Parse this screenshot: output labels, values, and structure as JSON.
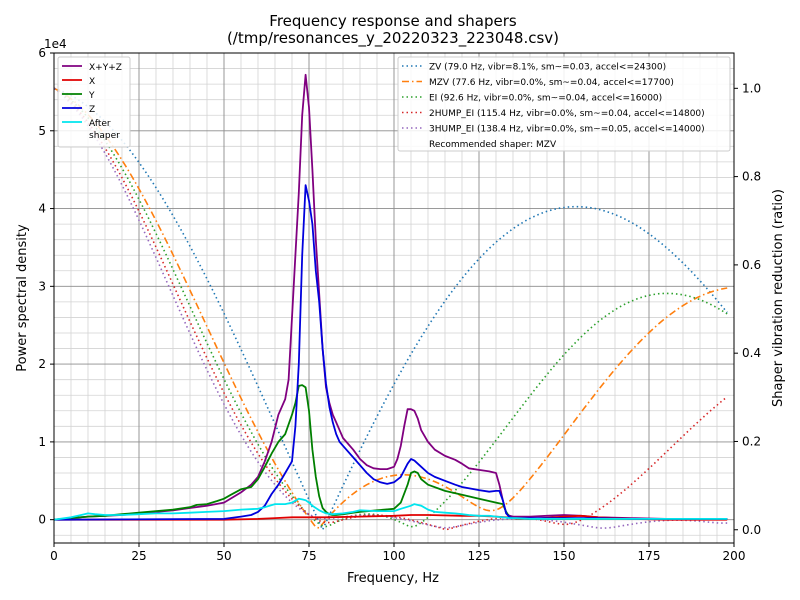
{
  "chart_data": {
    "type": "line",
    "title": "Frequency response and shapers",
    "subtitle": "(/tmp/resonances_y_20220323_223048.csv)",
    "xlabel": "Frequency, Hz",
    "ylabel": "Power spectral density",
    "y2label": "Shaper vibration reduction (ratio)",
    "y_multiplier_label": "1e4",
    "xlim": [
      0,
      200
    ],
    "ylim": [
      -0.3,
      6.0
    ],
    "y2lim": [
      -0.03,
      1.08
    ],
    "xticks": [
      0,
      25,
      50,
      75,
      100,
      125,
      150,
      175,
      200
    ],
    "yticks": [
      0,
      1,
      2,
      3,
      4,
      5,
      6
    ],
    "y2ticks": [
      "0.0",
      "0.2",
      "0.4",
      "0.6",
      "0.8",
      "1.0"
    ],
    "grid": true,
    "psd_legend_position": "upper-left",
    "shaper_legend_position": "upper-right",
    "recommendation": "Recommended shaper: MZV",
    "psd_series": [
      {
        "name": "X+Y+Z",
        "color": "#800080",
        "style": "solid",
        "x": [
          0,
          5,
          10,
          15,
          20,
          25,
          30,
          35,
          40,
          45,
          50,
          55,
          58,
          60,
          62,
          64,
          66,
          68,
          69,
          70,
          71,
          72,
          73,
          74,
          75,
          76,
          77,
          78,
          79,
          80,
          81,
          82,
          83,
          84,
          85,
          86,
          88,
          90,
          92,
          94,
          96,
          98,
          100,
          101,
          102,
          103,
          104,
          105,
          106,
          107,
          108,
          110,
          112,
          115,
          118,
          120,
          122,
          125,
          128,
          130,
          131,
          132,
          133,
          134,
          135,
          140,
          145,
          150,
          155,
          160,
          170,
          180,
          190,
          198
        ],
        "y": [
          0,
          0.02,
          0.04,
          0.05,
          0.06,
          0.08,
          0.1,
          0.12,
          0.15,
          0.18,
          0.22,
          0.35,
          0.45,
          0.55,
          0.75,
          1.0,
          1.35,
          1.55,
          1.8,
          2.6,
          3.4,
          4.2,
          5.2,
          5.72,
          5.3,
          4.5,
          3.6,
          2.9,
          2.2,
          1.7,
          1.5,
          1.35,
          1.25,
          1.15,
          1.05,
          1.0,
          0.9,
          0.78,
          0.7,
          0.66,
          0.65,
          0.65,
          0.68,
          0.78,
          0.95,
          1.2,
          1.42,
          1.42,
          1.4,
          1.3,
          1.15,
          1.0,
          0.9,
          0.82,
          0.77,
          0.72,
          0.66,
          0.64,
          0.62,
          0.6,
          0.45,
          0.25,
          0.08,
          0.05,
          0.04,
          0.04,
          0.05,
          0.06,
          0.05,
          0.03,
          0.02,
          0.01,
          0.01,
          0.01
        ]
      },
      {
        "name": "X",
        "color": "#e00000",
        "style": "solid",
        "x": [
          0,
          50,
          60,
          65,
          70,
          75,
          80,
          90,
          100,
          105,
          110,
          120,
          125,
          130,
          133,
          135,
          140,
          150,
          155,
          160,
          170,
          180,
          198
        ],
        "y": [
          0,
          0,
          0.01,
          0.02,
          0.03,
          0.03,
          0.03,
          0.04,
          0.05,
          0.06,
          0.06,
          0.05,
          0.05,
          0.04,
          0.03,
          0.02,
          0.01,
          0.04,
          0.05,
          0.03,
          0.01,
          0,
          0
        ]
      },
      {
        "name": "Y",
        "color": "#008000",
        "style": "solid",
        "x": [
          0,
          5,
          10,
          15,
          20,
          25,
          30,
          35,
          40,
          42,
          45,
          48,
          50,
          52,
          55,
          58,
          60,
          62,
          64,
          66,
          68,
          70,
          71,
          72,
          73,
          74,
          75,
          76,
          77,
          78,
          79,
          80,
          81,
          82,
          83,
          85,
          88,
          90,
          95,
          100,
          102,
          104,
          105,
          106,
          107,
          108,
          110,
          115,
          120,
          125,
          130,
          132,
          133,
          134,
          135,
          140,
          150,
          160,
          170,
          180,
          190,
          198
        ],
        "y": [
          0,
          0.02,
          0.04,
          0.05,
          0.07,
          0.09,
          0.11,
          0.13,
          0.16,
          0.19,
          0.2,
          0.24,
          0.27,
          0.32,
          0.39,
          0.42,
          0.52,
          0.68,
          0.85,
          1.0,
          1.1,
          1.35,
          1.5,
          1.72,
          1.73,
          1.7,
          1.4,
          0.9,
          0.55,
          0.3,
          0.15,
          0.1,
          0.07,
          0.06,
          0.06,
          0.07,
          0.09,
          0.1,
          0.12,
          0.14,
          0.22,
          0.45,
          0.6,
          0.62,
          0.6,
          0.52,
          0.45,
          0.37,
          0.32,
          0.27,
          0.22,
          0.2,
          0.1,
          0.03,
          0.02,
          0.01,
          0.01,
          0.01,
          0.01,
          0.01,
          0.01,
          0.01
        ]
      },
      {
        "name": "Z",
        "color": "#0000dd",
        "style": "solid",
        "x": [
          0,
          50,
          55,
          58,
          60,
          62,
          64,
          66,
          68,
          70,
          71,
          72,
          73,
          74,
          75,
          76,
          77,
          78,
          79,
          80,
          81,
          82,
          83,
          84,
          85,
          86,
          88,
          90,
          92,
          94,
          96,
          98,
          100,
          102,
          104,
          105,
          106,
          107,
          108,
          110,
          112,
          115,
          118,
          120,
          125,
          128,
          130,
          131,
          132,
          133,
          134,
          135,
          140,
          150,
          160,
          170,
          180,
          190,
          198
        ],
        "y": [
          0,
          0.01,
          0.04,
          0.06,
          0.1,
          0.18,
          0.33,
          0.45,
          0.6,
          0.75,
          1.2,
          2.0,
          3.4,
          4.3,
          4.1,
          3.8,
          3.2,
          2.8,
          2.2,
          1.75,
          1.45,
          1.25,
          1.1,
          1.0,
          0.95,
          0.9,
          0.8,
          0.7,
          0.6,
          0.52,
          0.48,
          0.46,
          0.48,
          0.55,
          0.72,
          0.78,
          0.76,
          0.72,
          0.68,
          0.6,
          0.55,
          0.5,
          0.45,
          0.42,
          0.38,
          0.36,
          0.37,
          0.37,
          0.25,
          0.08,
          0.03,
          0.02,
          0.02,
          0.02,
          0.02,
          0.01,
          0.01,
          0.01,
          0.01
        ]
      },
      {
        "name": "After\nshaper",
        "color": "#00e5ee",
        "style": "solid",
        "x": [
          0,
          5,
          8,
          10,
          12,
          15,
          20,
          25,
          30,
          35,
          40,
          45,
          50,
          55,
          60,
          62,
          65,
          68,
          70,
          72,
          73,
          74,
          75,
          76,
          78,
          80,
          82,
          85,
          88,
          90,
          95,
          100,
          102,
          105,
          106,
          108,
          110,
          112,
          115,
          118,
          120,
          122,
          125,
          128,
          130,
          132,
          134,
          136,
          140,
          150,
          160,
          170,
          180,
          190,
          198
        ],
        "y": [
          0,
          0.03,
          0.06,
          0.08,
          0.07,
          0.06,
          0.06,
          0.07,
          0.08,
          0.08,
          0.09,
          0.1,
          0.11,
          0.13,
          0.14,
          0.16,
          0.2,
          0.2,
          0.22,
          0.27,
          0.26,
          0.25,
          0.22,
          0.18,
          0.12,
          0.08,
          0.07,
          0.08,
          0.1,
          0.12,
          0.11,
          0.11,
          0.14,
          0.18,
          0.2,
          0.18,
          0.13,
          0.1,
          0.09,
          0.08,
          0.07,
          0.06,
          0.05,
          0.05,
          0.04,
          0.03,
          0.02,
          0.02,
          0.01,
          0.01,
          0.01,
          0.01,
          0.01,
          0.01,
          0.01
        ]
      }
    ],
    "shaper_series": [
      {
        "name": "ZV (79.0 Hz, vibr=8.1%, sm~=0.03, accel<=24300)",
        "color": "#1f77b4",
        "style": "dotted",
        "freq": 79.0,
        "zeta": 0.1,
        "type": "ZV"
      },
      {
        "name": "MZV (77.6 Hz, vibr=0.0%, sm~=0.04, accel<=17700)",
        "color": "#ff7f0e",
        "style": "dashdot",
        "freq": 77.6,
        "zeta": 0.1,
        "type": "MZV"
      },
      {
        "name": "EI (92.6 Hz, vibr=0.0%, sm~=0.04, accel<=16000)",
        "color": "#2ca02c",
        "style": "dotted",
        "freq": 92.6,
        "zeta": 0.1,
        "type": "EI"
      },
      {
        "name": "2HUMP_EI (115.4 Hz, vibr=0.0%, sm~=0.04, accel<=14800)",
        "color": "#d62728",
        "style": "dotted",
        "freq": 115.4,
        "zeta": 0.1,
        "type": "2HUMP_EI"
      },
      {
        "name": "3HUMP_EI (138.4 Hz, vibr=0.0%, sm~=0.05, accel<=14000)",
        "color": "#9467bd",
        "style": "dotted",
        "freq": 138.4,
        "zeta": 0.1,
        "type": "3HUMP_EI"
      }
    ]
  }
}
